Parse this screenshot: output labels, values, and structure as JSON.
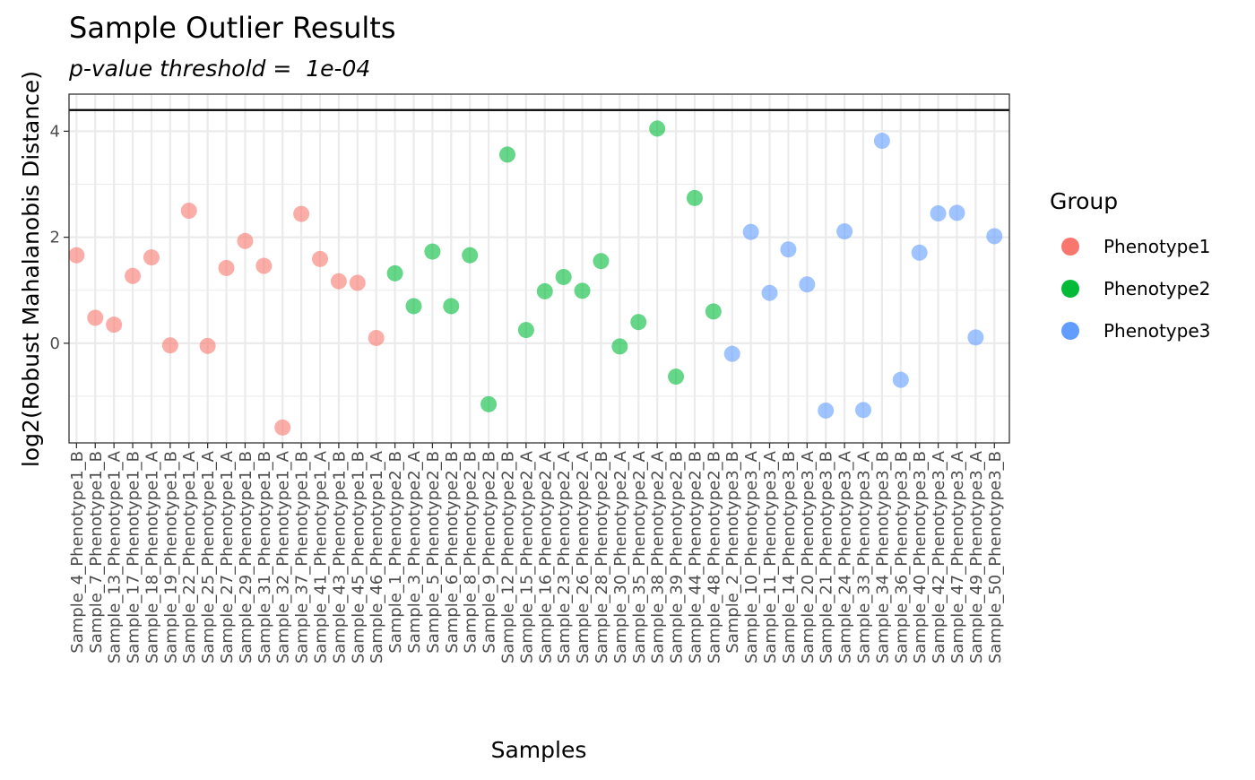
{
  "chart_data": {
    "type": "scatter",
    "title": "Sample Outlier Results",
    "subtitle": "p-value threshold =  1e-04",
    "xlabel": "Samples",
    "ylabel": "log2(Robust Mahalanobis Distance)",
    "ylim": [
      -1.88,
      4.7
    ],
    "yticks": [
      0,
      2,
      4
    ],
    "threshold": 4.4,
    "grid": true,
    "legend": {
      "title": "Group",
      "position": "right",
      "entries": [
        {
          "name": "Phenotype1",
          "color": "#F8766D"
        },
        {
          "name": "Phenotype2",
          "color": "#00BA38"
        },
        {
          "name": "Phenotype3",
          "color": "#619CFF"
        }
      ]
    },
    "points": [
      {
        "label": "Sample_4_Phenotype1_B",
        "group": "Phenotype1",
        "y": 1.66
      },
      {
        "label": "Sample_7_Phenotype1_B",
        "group": "Phenotype1",
        "y": 0.48
      },
      {
        "label": "Sample_13_Phenotype1_A",
        "group": "Phenotype1",
        "y": 0.35
      },
      {
        "label": "Sample_17_Phenotype1_B",
        "group": "Phenotype1",
        "y": 1.27
      },
      {
        "label": "Sample_18_Phenotype1_A",
        "group": "Phenotype1",
        "y": 1.62
      },
      {
        "label": "Sample_19_Phenotype1_B",
        "group": "Phenotype1",
        "y": -0.04
      },
      {
        "label": "Sample_22_Phenotype1_A",
        "group": "Phenotype1",
        "y": 2.5
      },
      {
        "label": "Sample_25_Phenotype1_A",
        "group": "Phenotype1",
        "y": -0.05
      },
      {
        "label": "Sample_27_Phenotype1_A",
        "group": "Phenotype1",
        "y": 1.42
      },
      {
        "label": "Sample_29_Phenotype1_B",
        "group": "Phenotype1",
        "y": 1.93
      },
      {
        "label": "Sample_31_Phenotype1_B",
        "group": "Phenotype1",
        "y": 1.46
      },
      {
        "label": "Sample_32_Phenotype1_A",
        "group": "Phenotype1",
        "y": -1.59
      },
      {
        "label": "Sample_37_Phenotype1_B",
        "group": "Phenotype1",
        "y": 2.44
      },
      {
        "label": "Sample_41_Phenotype1_A",
        "group": "Phenotype1",
        "y": 1.59
      },
      {
        "label": "Sample_43_Phenotype1_B",
        "group": "Phenotype1",
        "y": 1.17
      },
      {
        "label": "Sample_45_Phenotype1_B",
        "group": "Phenotype1",
        "y": 1.14
      },
      {
        "label": "Sample_46_Phenotype1_A",
        "group": "Phenotype1",
        "y": 0.1
      },
      {
        "label": "Sample_1_Phenotype2_B",
        "group": "Phenotype2",
        "y": 1.32
      },
      {
        "label": "Sample_3_Phenotype2_A",
        "group": "Phenotype2",
        "y": 0.7
      },
      {
        "label": "Sample_5_Phenotype2_B",
        "group": "Phenotype2",
        "y": 1.73
      },
      {
        "label": "Sample_6_Phenotype2_B",
        "group": "Phenotype2",
        "y": 0.7
      },
      {
        "label": "Sample_8_Phenotype2_B",
        "group": "Phenotype2",
        "y": 1.66
      },
      {
        "label": "Sample_9_Phenotype2_B",
        "group": "Phenotype2",
        "y": -1.15
      },
      {
        "label": "Sample_12_Phenotype2_B",
        "group": "Phenotype2",
        "y": 3.56
      },
      {
        "label": "Sample_15_Phenotype2_A",
        "group": "Phenotype2",
        "y": 0.25
      },
      {
        "label": "Sample_16_Phenotype2_A",
        "group": "Phenotype2",
        "y": 0.98
      },
      {
        "label": "Sample_23_Phenotype2_A",
        "group": "Phenotype2",
        "y": 1.25
      },
      {
        "label": "Sample_26_Phenotype2_A",
        "group": "Phenotype2",
        "y": 0.99
      },
      {
        "label": "Sample_28_Phenotype2_B",
        "group": "Phenotype2",
        "y": 1.55
      },
      {
        "label": "Sample_30_Phenotype2_A",
        "group": "Phenotype2",
        "y": -0.06
      },
      {
        "label": "Sample_35_Phenotype2_A",
        "group": "Phenotype2",
        "y": 0.4
      },
      {
        "label": "Sample_38_Phenotype2_A",
        "group": "Phenotype2",
        "y": 4.05
      },
      {
        "label": "Sample_39_Phenotype2_B",
        "group": "Phenotype2",
        "y": -0.63
      },
      {
        "label": "Sample_44_Phenotype2_B",
        "group": "Phenotype2",
        "y": 2.74
      },
      {
        "label": "Sample_48_Phenotype2_B",
        "group": "Phenotype2",
        "y": 0.6
      },
      {
        "label": "Sample_2_Phenotype3_B",
        "group": "Phenotype3",
        "y": -0.2
      },
      {
        "label": "Sample_10_Phenotype3_A",
        "group": "Phenotype3",
        "y": 2.1
      },
      {
        "label": "Sample_11_Phenotype3_A",
        "group": "Phenotype3",
        "y": 0.95
      },
      {
        "label": "Sample_14_Phenotype3_B",
        "group": "Phenotype3",
        "y": 1.77
      },
      {
        "label": "Sample_20_Phenotype3_A",
        "group": "Phenotype3",
        "y": 1.11
      },
      {
        "label": "Sample_21_Phenotype3_B",
        "group": "Phenotype3",
        "y": -1.27
      },
      {
        "label": "Sample_24_Phenotype3_A",
        "group": "Phenotype3",
        "y": 2.11
      },
      {
        "label": "Sample_33_Phenotype3_A",
        "group": "Phenotype3",
        "y": -1.26
      },
      {
        "label": "Sample_34_Phenotype3_B",
        "group": "Phenotype3",
        "y": 3.82
      },
      {
        "label": "Sample_36_Phenotype3_B",
        "group": "Phenotype3",
        "y": -0.69
      },
      {
        "label": "Sample_40_Phenotype3_B",
        "group": "Phenotype3",
        "y": 1.71
      },
      {
        "label": "Sample_42_Phenotype3_A",
        "group": "Phenotype3",
        "y": 2.45
      },
      {
        "label": "Sample_47_Phenotype3_A",
        "group": "Phenotype3",
        "y": 2.46
      },
      {
        "label": "Sample_49_Phenotype3_A",
        "group": "Phenotype3",
        "y": 0.11
      },
      {
        "label": "Sample_50_Phenotype3_B",
        "group": "Phenotype3",
        "y": 2.02
      }
    ]
  }
}
